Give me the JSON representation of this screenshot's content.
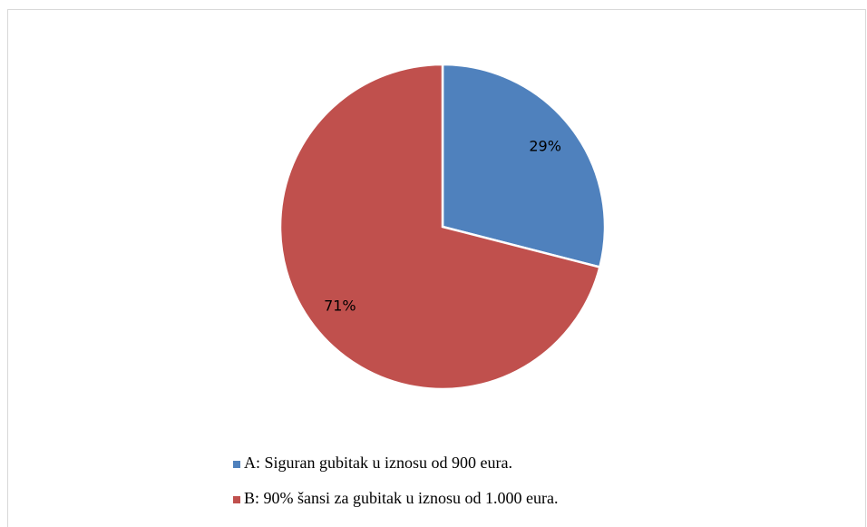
{
  "chart_data": {
    "type": "pie",
    "categories": [
      "A: Siguran gubitak u iznosu od 900 eura.",
      "B: 90% šansi za gubitak u iznosu od 1.000 eura."
    ],
    "values": [
      29,
      71
    ],
    "value_labels": [
      "29%",
      "71%"
    ],
    "colors": [
      "#4f81bd",
      "#c0504d"
    ],
    "legend": "bottom"
  }
}
